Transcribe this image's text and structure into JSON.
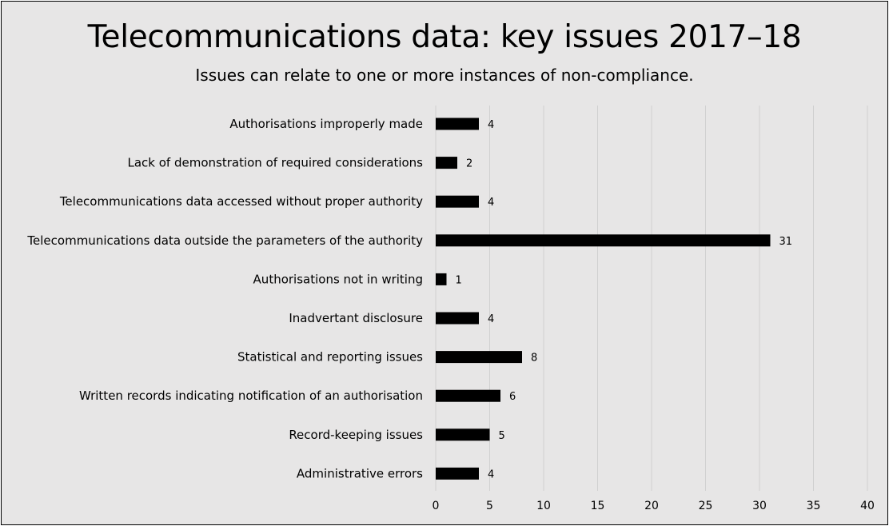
{
  "chart_data": {
    "type": "bar",
    "orientation": "horizontal",
    "title": "Telecommunications data: key issues 2017–18",
    "subtitle": "Issues can relate to one or more instances of non-compliance.",
    "categories": [
      "Authorisations improperly made",
      "Lack of demonstration of required considerations",
      "Telecommunications data accessed without proper authority",
      "Telecommunications data outside the parameters of the authority",
      "Authorisations not in writing",
      "Inadvertant disclosure",
      "Statistical and reporting issues",
      "Written records indicating notification of an authorisation",
      "Record-keeping issues",
      "Administrative errors"
    ],
    "values": [
      4,
      2,
      4,
      31,
      1,
      4,
      8,
      6,
      5,
      4
    ],
    "xlim": [
      0,
      40
    ],
    "xticks": [
      0,
      5,
      10,
      15,
      20,
      25,
      30,
      35,
      40
    ],
    "grid": true,
    "legend": "none",
    "bar_color": "#000000",
    "grid_color": "#d0d0d0",
    "background_color": "#e7e6e6"
  }
}
